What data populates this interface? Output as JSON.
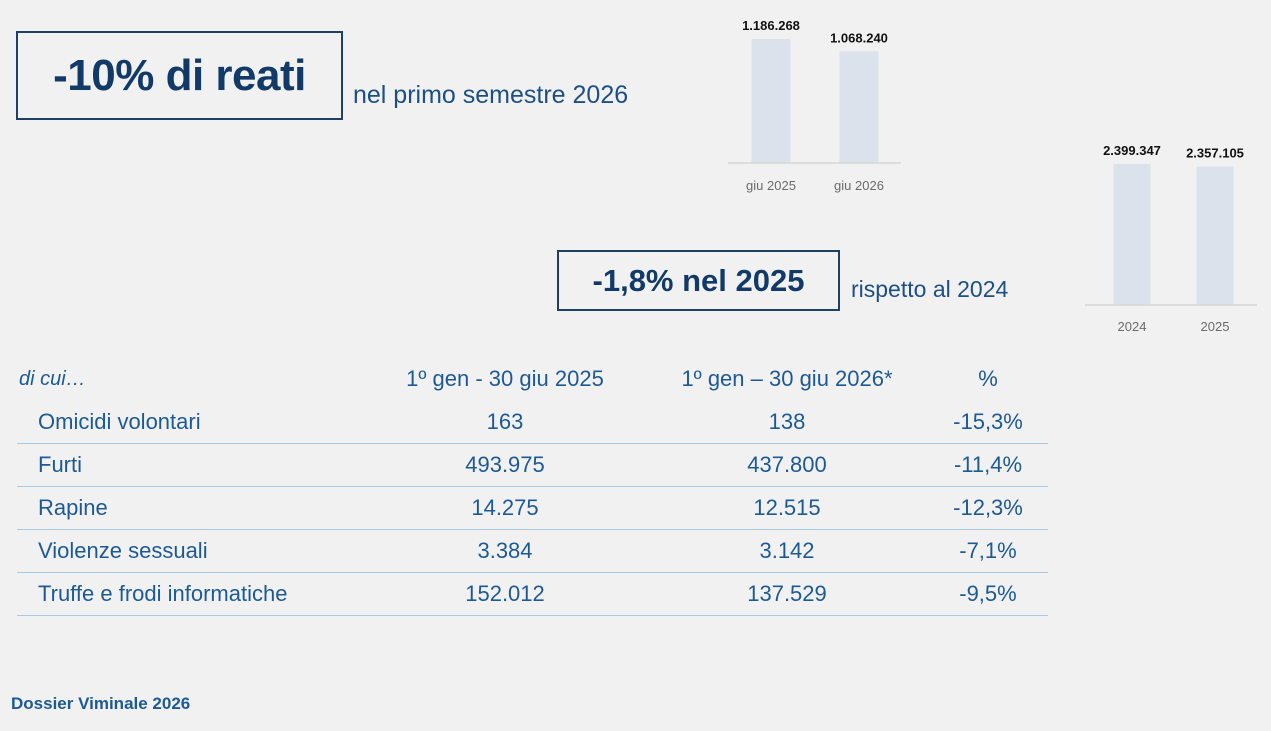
{
  "headline_main": "-10% di reati",
  "headline_main_sub": "nel primo semestre 2026",
  "headline_secondary": "-1,8% nel 2025",
  "headline_secondary_sub": "rispetto al 2024",
  "chart_data": [
    {
      "type": "bar",
      "categories": [
        "giu 2025",
        "giu 2026"
      ],
      "values": [
        1186268,
        1068240
      ],
      "value_labels": [
        "1.186.268",
        "1.068.240"
      ],
      "color": "#dbe2eb"
    },
    {
      "type": "bar",
      "categories": [
        "2024",
        "2025"
      ],
      "values": [
        2399347,
        2357105
      ],
      "value_labels": [
        "2.399.347",
        "2.357.105"
      ],
      "color": "#dbe2eb"
    }
  ],
  "table": {
    "headers": [
      "di cui…",
      "1º gen - 30 giu 2025",
      "1º gen – 30 giu 2026*",
      "%"
    ],
    "rows": [
      [
        "Omicidi volontari",
        "163",
        "138",
        "-15,3%"
      ],
      [
        "Furti",
        "493.975",
        "437.800",
        "-11,4%"
      ],
      [
        "Rapine",
        "14.275",
        "12.515",
        "-12,3%"
      ],
      [
        "Violenze sessuali",
        "3.384",
        "3.142",
        "-7,1%"
      ],
      [
        "Truffe e frodi informatiche",
        "152.012",
        "137.529",
        "-9,5%"
      ]
    ]
  },
  "footer": "Dossier Viminale 2026",
  "colors": {
    "navy": "#123a68",
    "blue_text": "#1d5a95",
    "bar": "#dbe2eb",
    "rule": "#a9c8e6"
  }
}
